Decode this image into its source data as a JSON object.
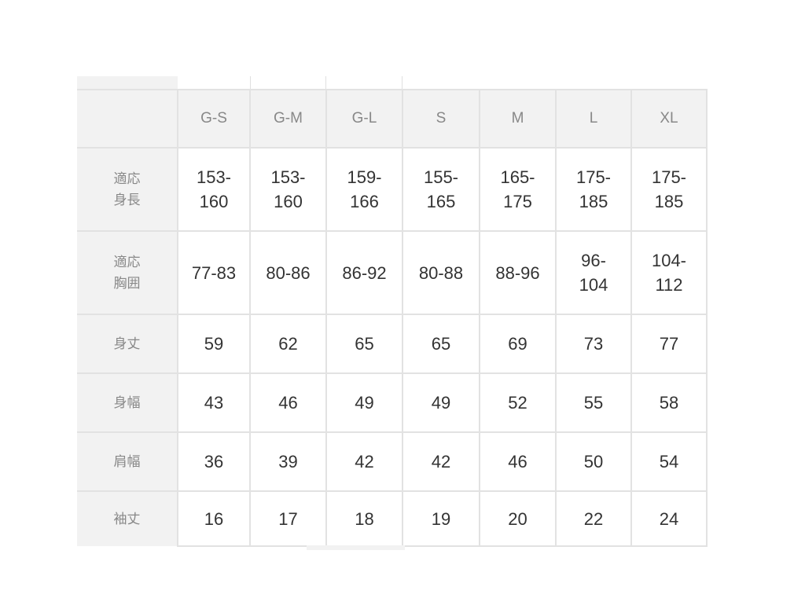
{
  "table": {
    "columns": [
      "G-S",
      "G-M",
      "G-L",
      "S",
      "M",
      "L",
      "XL"
    ],
    "rows": [
      {
        "label": "適応\n身長",
        "values": [
          "153-\n160",
          "153-\n160",
          "159-\n166",
          "155-\n165",
          "165-\n175",
          "175-\n185",
          "175-\n185"
        ]
      },
      {
        "label": "適応\n胸囲",
        "values": [
          "77-83",
          "80-86",
          "86-92",
          "80-88",
          "88-96",
          "96-\n104",
          "104-\n112"
        ]
      },
      {
        "label": "身丈",
        "values": [
          "59",
          "62",
          "65",
          "65",
          "69",
          "73",
          "77"
        ]
      },
      {
        "label": "身幅",
        "values": [
          "43",
          "46",
          "49",
          "49",
          "52",
          "55",
          "58"
        ]
      },
      {
        "label": "肩幅",
        "values": [
          "36",
          "39",
          "42",
          "42",
          "46",
          "50",
          "54"
        ]
      },
      {
        "label": "袖丈",
        "values": [
          "16",
          "17",
          "18",
          "19",
          "20",
          "22",
          "24"
        ]
      }
    ]
  },
  "colors": {
    "header_bg": "#f2f2f2",
    "border": "#e2e2e2",
    "label_text": "#888888",
    "value_text": "#333333"
  }
}
